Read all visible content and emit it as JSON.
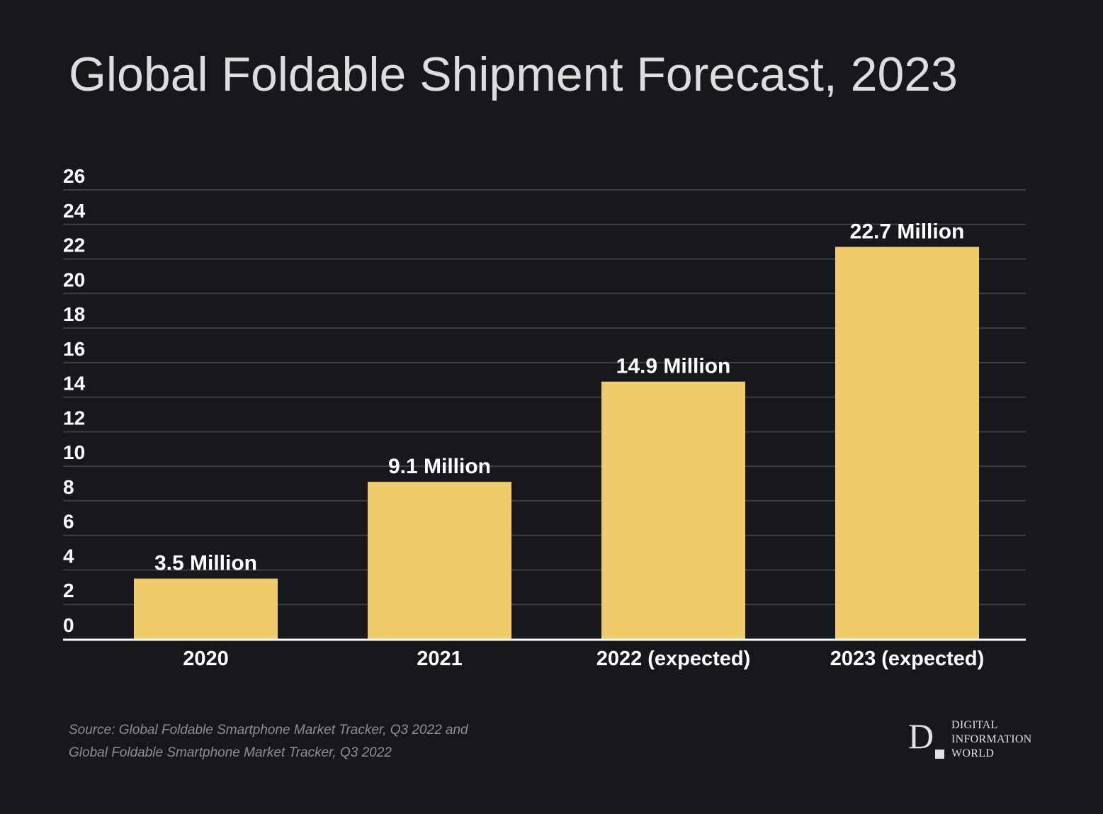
{
  "title": "Global Foldable Shipment Forecast, 2023",
  "chart_data": {
    "type": "bar",
    "title": "Global Foldable Shipment Forecast, 2023",
    "xlabel": "",
    "ylabel": "",
    "categories": [
      "2020",
      "2021",
      "2022 (expected)",
      "2023 (expected)"
    ],
    "values": [
      3.5,
      9.1,
      14.9,
      22.7
    ],
    "data_labels": [
      "3.5 Million",
      "9.1 Million",
      "14.9 Million",
      "22.7 Million"
    ],
    "units": "Million",
    "ylim": [
      0,
      26
    ],
    "yticks": [
      0,
      2,
      4,
      6,
      8,
      10,
      12,
      14,
      16,
      18,
      20,
      22,
      24,
      26
    ],
    "grid": true,
    "legend": "none",
    "bar_color": "#eecb6b"
  },
  "colors": {
    "background": "#18171d",
    "bar": "#eecb6b",
    "grid": "#3f3e45",
    "axis": "#ffffff",
    "text": "#ffffff",
    "title": "#dddddd",
    "source": "#8f8f8f"
  },
  "source": {
    "line1": "Source: Global Foldable Smartphone Market Tracker, Q3 2022 and",
    "line2": "Global Foldable Smartphone Market Tracker, Q3 2022"
  },
  "logo": {
    "mark": "D",
    "line1": "DIGITAL",
    "line2": "INFORMATION",
    "line3": "WORLD"
  }
}
